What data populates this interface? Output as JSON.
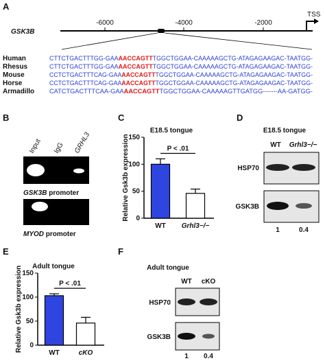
{
  "panel_a": {
    "label": "A",
    "gene": "GSK3B",
    "ticks": [
      "-6000",
      "-4000",
      "-2000"
    ],
    "tss": "TSS",
    "alignment": [
      {
        "species": "Human",
        "before": "CTTCTGACTTTGG-GAA",
        "motif": "AACCAGTT",
        "after": "TGGCTGGAA-CAAAAAGCTG-ATAGAGAAGAC-TAATGG-"
      },
      {
        "species": "Rhesus",
        "before": "CTTCTGACTTTGG-GAA",
        "motif": "AACCAGTT",
        "after": "TGGCTGGAA-CAAAAAGCTG-ATAGAGAAGAC-TAATGG-"
      },
      {
        "species": "Mouse",
        "before": "CCTCTGACTTTCAG-GAA",
        "motif": "AACCAGTT",
        "after": "TGGCTGGAA-CAAAAAGCTG-ATAGAGAAGAC-TAATGG-"
      },
      {
        "species": "Horse",
        "before": "CCTCTGACTTTCAG-GAA",
        "motif": "AACCAGTT",
        "after": "TGGCTGGAA-CAAAAAGCTG-ATAGAGAAGAC-TAATGG-"
      },
      {
        "species": "Armadillo",
        "before": "CATCTGACTTTCAA-GAA",
        "motif": "AACCAGTT",
        "after": "TGGCTGGAA-CAAAAAGTTGATGG-------AA-GATGG-"
      }
    ]
  },
  "panel_b": {
    "label": "B",
    "lanes": [
      "Input",
      "IgG",
      "GRHL3"
    ],
    "gels": [
      {
        "gene": "GSK3B",
        "text": "promoter"
      },
      {
        "gene": "MYOD",
        "text": "promoter"
      }
    ]
  },
  "panel_d": {
    "label": "D",
    "title": "E18.5 tongue",
    "lanes": [
      "WT",
      "Grhl3−/−"
    ],
    "blots": [
      "HSP70",
      "GSK3B"
    ],
    "ratios": [
      "1",
      "0.4"
    ]
  },
  "panel_f": {
    "label": "F",
    "title": "Adult tongue",
    "lanes": [
      "WT",
      "cKO"
    ],
    "blots": [
      "HSP70",
      "GSK3B"
    ],
    "ratios": [
      "1",
      "0.4"
    ]
  },
  "chart_data": [
    {
      "type": "bar",
      "label": "C",
      "title": "E18.5 tongue",
      "y_label": "Relative Gsk3b expression",
      "categories": [
        "WT",
        "Grhl3−/−"
      ],
      "values": [
        100,
        46
      ],
      "errors": [
        10,
        8
      ],
      "colors": [
        "#2f45e0",
        "#ffffff"
      ],
      "annotation": "P < .01",
      "ylim": [
        0,
        150
      ],
      "yticks": [
        0,
        50,
        100,
        150
      ]
    },
    {
      "type": "bar",
      "label": "E",
      "title": "Adult tongue",
      "y_label": "Relative Gsk3b expression",
      "categories": [
        "WT",
        "cKO"
      ],
      "values": [
        103,
        46
      ],
      "errors": [
        4,
        12
      ],
      "colors": [
        "#2f45e0",
        "#ffffff"
      ],
      "annotation": "P < .01",
      "ylim": [
        0,
        150
      ],
      "yticks": [
        0,
        50,
        100,
        150
      ]
    }
  ]
}
